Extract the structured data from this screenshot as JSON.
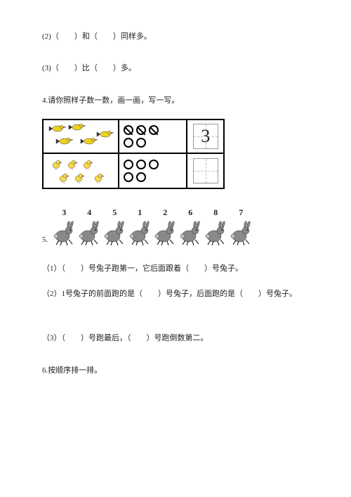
{
  "q2": {
    "text": "(2)（　　）和（　　）同样多。"
  },
  "q3": {
    "text": "(3)（　　）比（　　）多。"
  },
  "q4": {
    "text": "4.请你照样子数一数，画一画，写一写。",
    "row1_number": "3",
    "crossed_count": 3,
    "open_count_row1": 2,
    "open_count_row2": 5
  },
  "q5": {
    "label": "5.",
    "numbers": [
      "3",
      "4",
      "5",
      "1",
      "2",
      "6",
      "8",
      "7"
    ],
    "sub1": "（1）（　　）号兔子跑第一，它后面跟着（　　）号兔子。",
    "sub2": "（2）1号兔子的前面跑的是（　　）号兔子，后面跑的是（　　）号兔子。",
    "sub3": "（3）（　　）号跑最后，（　　）号跑倒数第二。"
  },
  "q6": {
    "text": "6.按顺序排一排。"
  },
  "styling": {
    "text_color": "#222222",
    "background": "#ffffff",
    "border_color": "#000000",
    "font_size_body": 11,
    "font_size_number3": 26,
    "rabbit_fill": "#888888",
    "bird_color": "#f0d020",
    "chick_color": "#f5d94a"
  }
}
